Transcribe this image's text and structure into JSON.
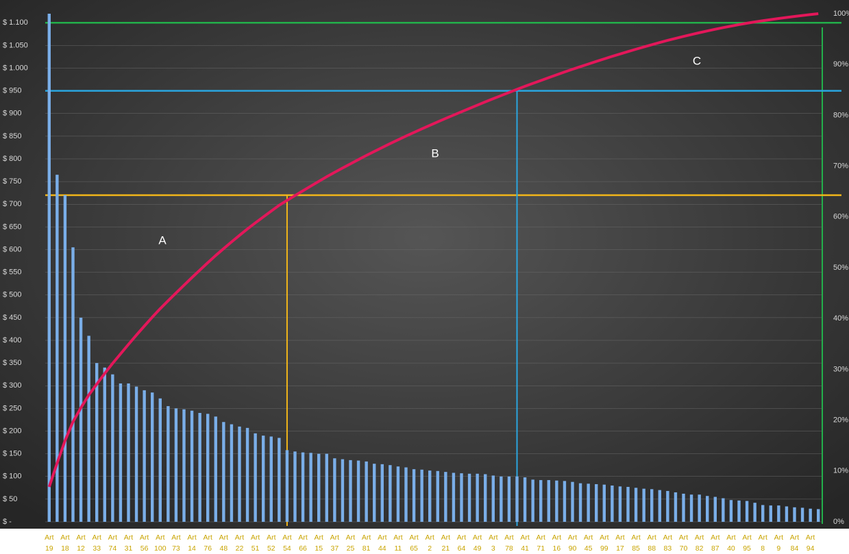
{
  "chart_data": {
    "type": "pareto",
    "categories": [
      "Art 19",
      null,
      "Art 18",
      null,
      "Art 12",
      null,
      "Art 33",
      null,
      "Art 74",
      null,
      "Art 31",
      null,
      "Art 56",
      null,
      "Art 100",
      null,
      "Art 73",
      null,
      "Art 14",
      null,
      "Art 76",
      null,
      "Art 48",
      null,
      "Art 22",
      null,
      "Art 51",
      null,
      "Art 52",
      null,
      "Art 54",
      null,
      "Art 66",
      null,
      "Art 15",
      null,
      "Art 37",
      null,
      "Art 25",
      null,
      "Art 81",
      null,
      "Art 44",
      null,
      "Art 11",
      null,
      "Art 65",
      null,
      "Art 2",
      null,
      "Art 21",
      null,
      "Art 64",
      null,
      "Art 49",
      null,
      "Art 3",
      null,
      "Art 78",
      null,
      "Art 41",
      null,
      "Art 71",
      null,
      "Art 16",
      null,
      "Art 90",
      null,
      "Art 45",
      null,
      "Art 99",
      null,
      "Art 17",
      null,
      "Art 85",
      null,
      "Art 88",
      null,
      "Art 83",
      null,
      "Art 70",
      null,
      "Art 82",
      null,
      "Art 87",
      null,
      "Art 40",
      null,
      "Art 95",
      null,
      "Art 8",
      null,
      "Art 9",
      null,
      "Art 84",
      null,
      "Art 94",
      null
    ],
    "values": [
      1120,
      765,
      720,
      605,
      450,
      410,
      350,
      340,
      325,
      305,
      305,
      298,
      290,
      285,
      272,
      255,
      250,
      248,
      245,
      240,
      238,
      232,
      220,
      215,
      210,
      207,
      195,
      190,
      188,
      185,
      158,
      155,
      153,
      152,
      150,
      150,
      140,
      138,
      136,
      135,
      133,
      128,
      127,
      125,
      122,
      120,
      116,
      115,
      113,
      112,
      110,
      108,
      107,
      106,
      106,
      105,
      102,
      100,
      100,
      100,
      98,
      93,
      92,
      92,
      91,
      90,
      88,
      85,
      84,
      83,
      82,
      80,
      78,
      77,
      75,
      73,
      72,
      70,
      68,
      65,
      62,
      60,
      60,
      57,
      55,
      52,
      48,
      47,
      46,
      42,
      37,
      36,
      36,
      34,
      32,
      31,
      29,
      28
    ],
    "color": "#7aaee8",
    "line_color": "#e3175a",
    "ylim": [
      0,
      1120
    ],
    "yticks": [
      {
        "value": 0,
        "label": "$ -"
      },
      {
        "value": 50,
        "label": "$ 50"
      },
      {
        "value": 100,
        "label": "$ 100"
      },
      {
        "value": 150,
        "label": "$ 150"
      },
      {
        "value": 200,
        "label": "$ 200"
      },
      {
        "value": 250,
        "label": "$ 250"
      },
      {
        "value": 300,
        "label": "$ 300"
      },
      {
        "value": 350,
        "label": "$ 350"
      },
      {
        "value": 400,
        "label": "$ 400"
      },
      {
        "value": 450,
        "label": "$ 450"
      },
      {
        "value": 500,
        "label": "$ 500"
      },
      {
        "value": 550,
        "label": "$ 550"
      },
      {
        "value": 600,
        "label": "$ 600"
      },
      {
        "value": 650,
        "label": "$ 650"
      },
      {
        "value": 700,
        "label": "$ 700"
      },
      {
        "value": 750,
        "label": "$ 750"
      },
      {
        "value": 800,
        "label": "$ 800"
      },
      {
        "value": 850,
        "label": "$ 850"
      },
      {
        "value": 900,
        "label": "$ 900"
      },
      {
        "value": 950,
        "label": "$ 950"
      },
      {
        "value": 1000,
        "label": "$ 1.000"
      },
      {
        "value": 1050,
        "label": "$ 1.050"
      },
      {
        "value": 1100,
        "label": "$ 1.100"
      }
    ],
    "y2lim": [
      0,
      100
    ],
    "y2ticks": [
      {
        "value": 0,
        "label": "0%"
      },
      {
        "value": 10,
        "label": "10%"
      },
      {
        "value": 20,
        "label": "20%"
      },
      {
        "value": 30,
        "label": "30%"
      },
      {
        "value": 40,
        "label": "40%"
      },
      {
        "value": 50,
        "label": "50%"
      },
      {
        "value": 60,
        "label": "60%"
      },
      {
        "value": 70,
        "label": "70%"
      },
      {
        "value": 80,
        "label": "80%"
      },
      {
        "value": 90,
        "label": "90%"
      },
      {
        "value": 100,
        "label": "100%"
      }
    ],
    "grid": true,
    "reference_lines": [
      {
        "value": 720,
        "at": 30,
        "color": "#f2b619"
      },
      {
        "value": 950,
        "at": 59,
        "color": "#2aa6e0"
      },
      {
        "value": 1100,
        "color": "#22b04a"
      }
    ],
    "annotations": [
      "A",
      "B",
      "C"
    ]
  }
}
